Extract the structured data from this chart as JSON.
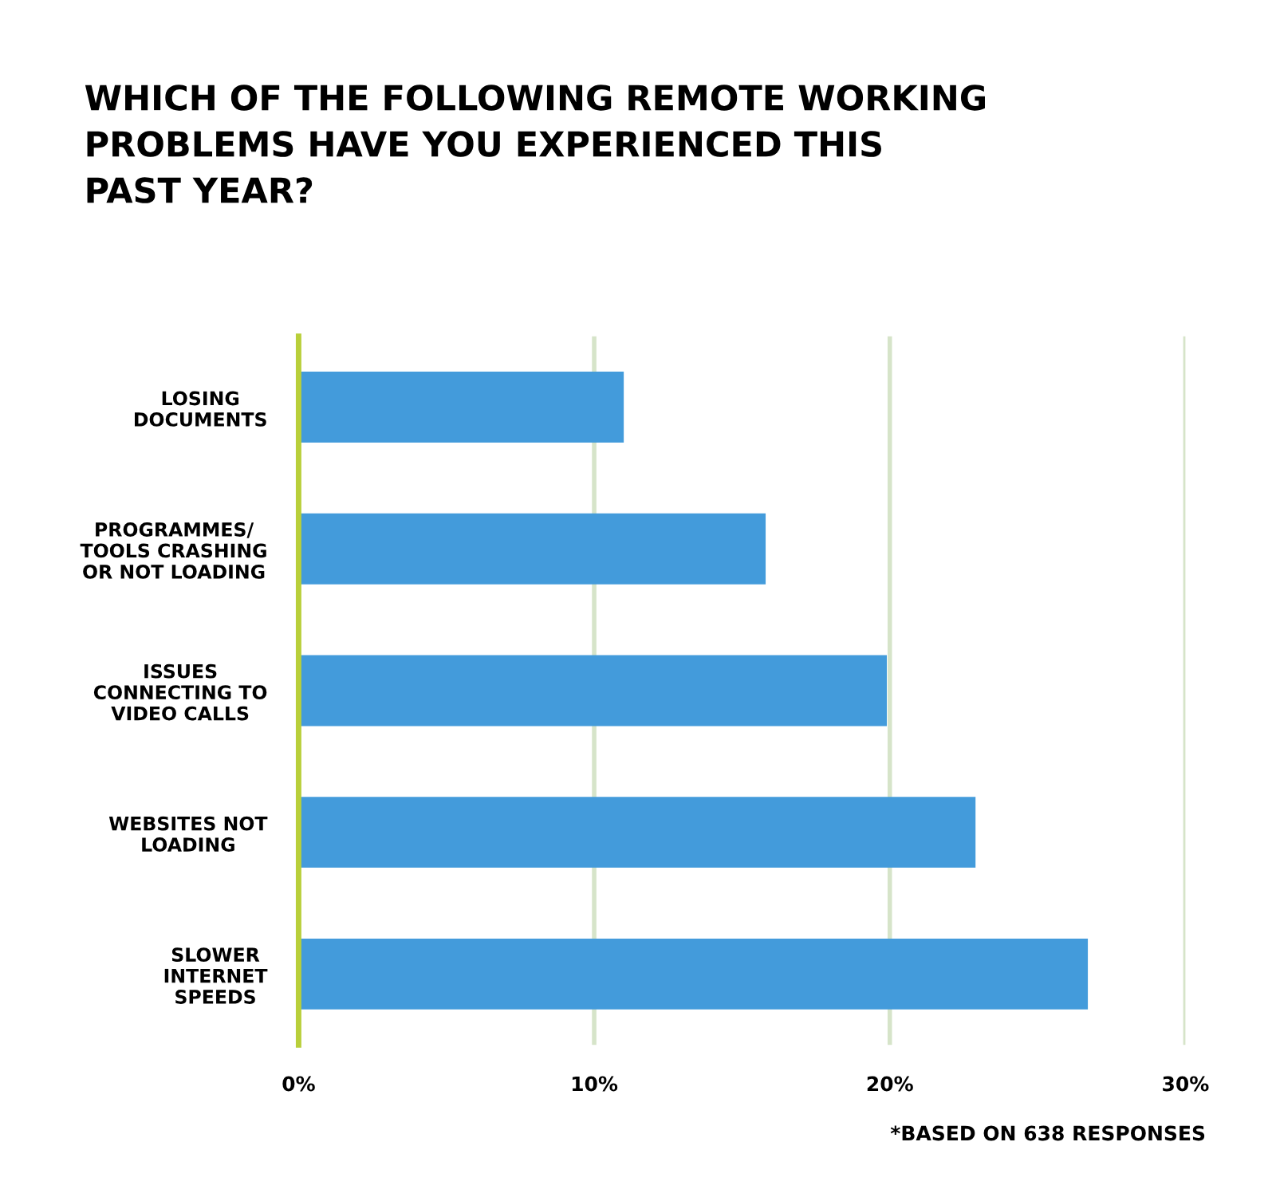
{
  "chart_data": {
    "type": "bar",
    "orientation": "horizontal",
    "title": "WHICH OF THE FOLLOWING REMOTE WORKING\nPROBLEMS HAVE YOU EXPERIENCED THIS\nPAST YEAR?",
    "categories": [
      "LOSING\nDOCUMENTS",
      "PROGRAMMES/\nTOOLS CRASHING\nOR NOT LOADING",
      "ISSUES\nCONNECTING TO\nVIDEO CALLS",
      "WEBSITES NOT\nLOADING",
      "SLOWER\nINTERNET\nSPEEDS"
    ],
    "values": [
      11,
      15.8,
      19.9,
      22.9,
      26.7
    ],
    "color": "#439bdb",
    "xlim": [
      0,
      30
    ],
    "xticks": [
      {
        "value": 0,
        "label": "0%"
      },
      {
        "value": 10,
        "label": "10%"
      },
      {
        "value": 20,
        "label": "20%"
      },
      {
        "value": 30,
        "label": "30%"
      }
    ],
    "grid": "x",
    "annotations": [
      "*BASED ON 638 RESPONSES"
    ]
  }
}
